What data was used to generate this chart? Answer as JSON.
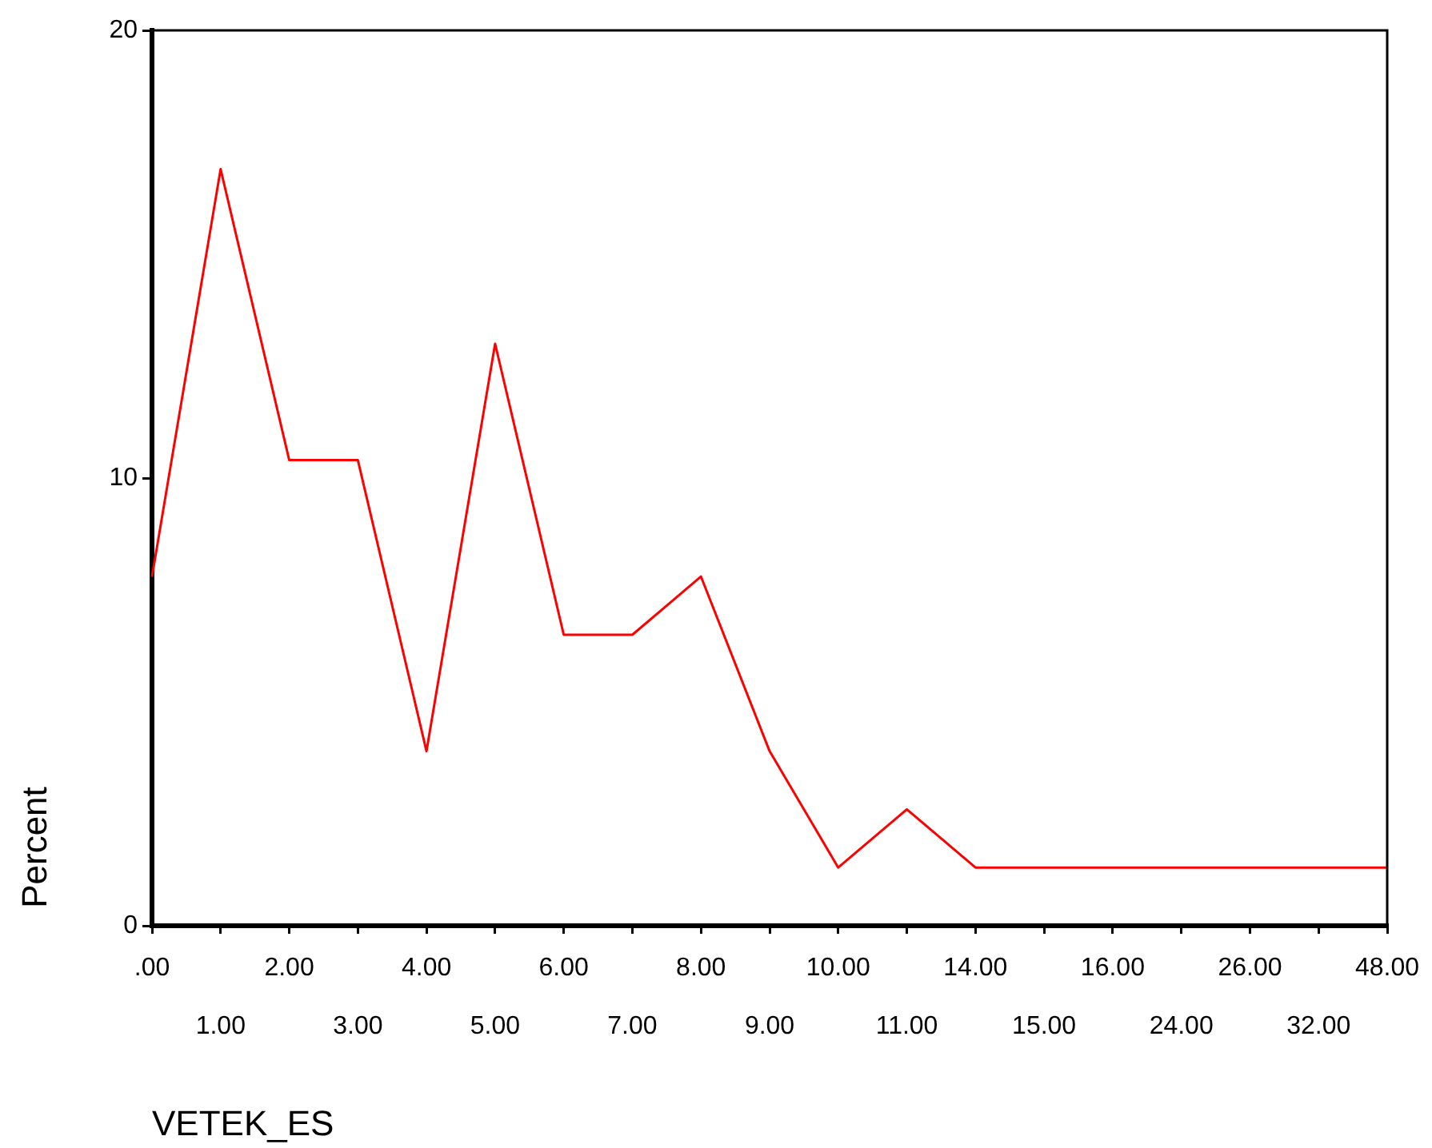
{
  "chart_data": {
    "type": "line",
    "xlabel": "VETEK_ES",
    "ylabel": "Percent",
    "categories": [
      ".00",
      "1.00",
      "2.00",
      "3.00",
      "4.00",
      "5.00",
      "6.00",
      "7.00",
      "8.00",
      "9.00",
      "10.00",
      "11.00",
      "14.00",
      "15.00",
      "16.00",
      "24.00",
      "26.00",
      "32.00",
      "48.00"
    ],
    "series": [
      {
        "color": "#ff0000",
        "values": [
          7.8,
          16.9,
          10.4,
          10.4,
          3.9,
          13.0,
          6.5,
          6.5,
          7.8,
          3.9,
          1.3,
          2.6,
          1.3,
          1.3,
          1.3,
          1.3,
          1.3,
          1.3,
          1.3
        ]
      }
    ],
    "ylim": [
      0,
      20
    ],
    "yticks": [
      0,
      10,
      20
    ],
    "grid": false,
    "legend": false,
    "marker": "none",
    "line_style": "solid"
  }
}
